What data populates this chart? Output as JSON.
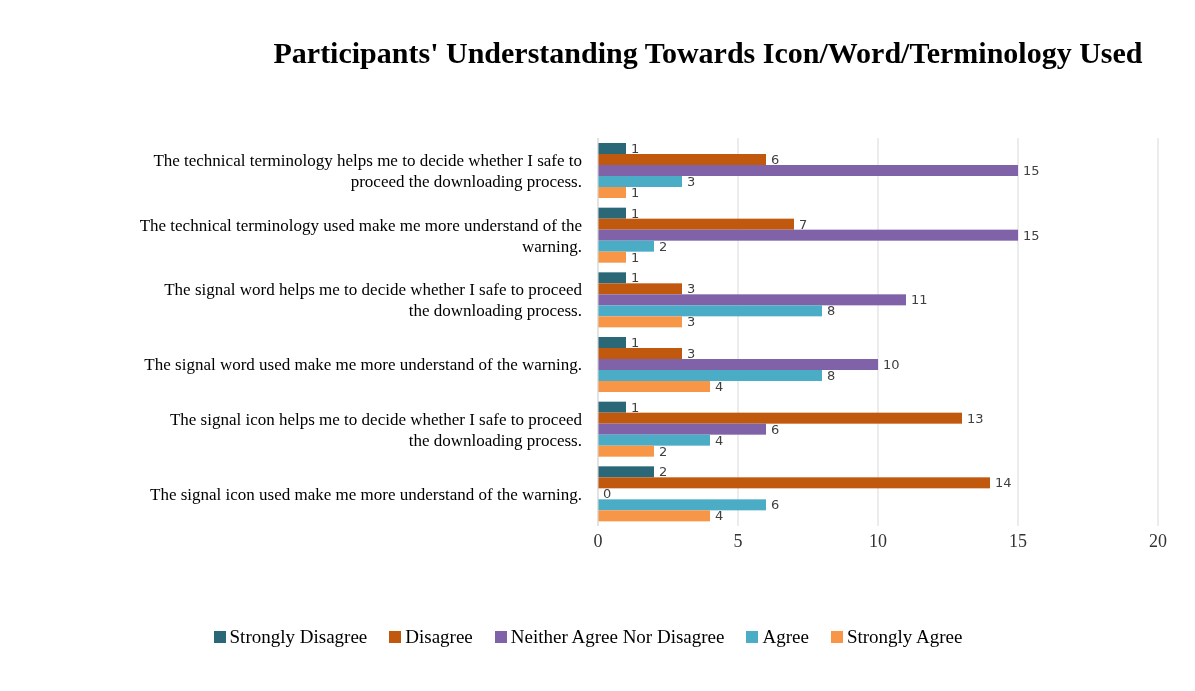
{
  "chart_data": {
    "type": "bar",
    "orientation": "horizontal",
    "title": "Participants' Understanding Towards Icon/Word/Terminology Used",
    "categories": [
      "The technical terminology helps me to decide whether I safe to proceed the downloading process.",
      "The technical terminology used make me more understand of the warning.",
      "The signal word helps me to decide whether I safe to proceed the downloading process.",
      "The signal word used make me more understand of the warning.",
      "The signal icon helps me to decide whether I safe to proceed the downloading process.",
      "The signal icon used make me more understand of the warning."
    ],
    "series": [
      {
        "name": "Strongly Disagree",
        "color": "#2a6877",
        "values": [
          1,
          1,
          1,
          1,
          1,
          2
        ]
      },
      {
        "name": "Disagree",
        "color": "#c0580e",
        "values": [
          6,
          7,
          3,
          3,
          13,
          14
        ]
      },
      {
        "name": "Neither Agree Nor Disagree",
        "color": "#7f62a8",
        "values": [
          15,
          15,
          11,
          10,
          6,
          0
        ]
      },
      {
        "name": "Agree",
        "color": "#4bacc6",
        "values": [
          3,
          2,
          8,
          8,
          4,
          6
        ]
      },
      {
        "name": "Strongly Agree",
        "color": "#f79646",
        "values": [
          1,
          1,
          3,
          4,
          2,
          4
        ]
      }
    ],
    "xlim": [
      0,
      20
    ],
    "xticks": [
      0,
      5,
      10,
      15,
      20
    ],
    "grid": "x",
    "legend": "bottom",
    "data_labels": true
  }
}
